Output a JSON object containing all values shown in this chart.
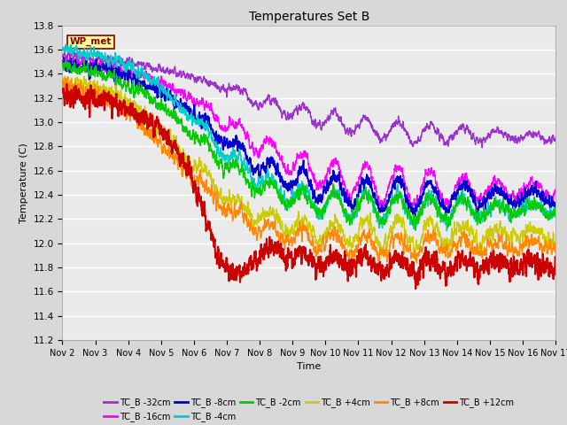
{
  "title": "Temperatures Set B",
  "xlabel": "Time",
  "ylabel": "Temperature (C)",
  "ylim": [
    11.2,
    13.8
  ],
  "xlim": [
    0,
    15
  ],
  "x_tick_labels": [
    "Nov 2",
    "Nov 3",
    "Nov 4",
    "Nov 5",
    "Nov 6",
    "Nov 7",
    "Nov 8",
    "Nov 9",
    "Nov 10",
    "Nov 11",
    "Nov 12",
    "Nov 13",
    "Nov 14",
    "Nov 15",
    "Nov 16",
    "Nov 17"
  ],
  "background_color": "#d8d8d8",
  "plot_bg_color": "#eaeaea",
  "grid_color": "#ffffff",
  "wp_met_label": "WP_met",
  "wp_met_bg": "#ffff99",
  "wp_met_border": "#800000",
  "series": [
    {
      "label": "TC_B -32cm",
      "color": "#9933cc",
      "lw": 1.0
    },
    {
      "label": "TC_B -16cm",
      "color": "#ff00ff",
      "lw": 1.0
    },
    {
      "label": "TC_B -8cm",
      "color": "#0000cc",
      "lw": 1.3
    },
    {
      "label": "TC_B -4cm",
      "color": "#00cccc",
      "lw": 1.0
    },
    {
      "label": "TC_B -2cm",
      "color": "#00cc00",
      "lw": 1.0
    },
    {
      "label": "TC_B +4cm",
      "color": "#cccc00",
      "lw": 1.0
    },
    {
      "label": "TC_B +8cm",
      "color": "#ff8800",
      "lw": 1.0
    },
    {
      "label": "TC_B +12cm",
      "color": "#cc0000",
      "lw": 1.5
    }
  ]
}
